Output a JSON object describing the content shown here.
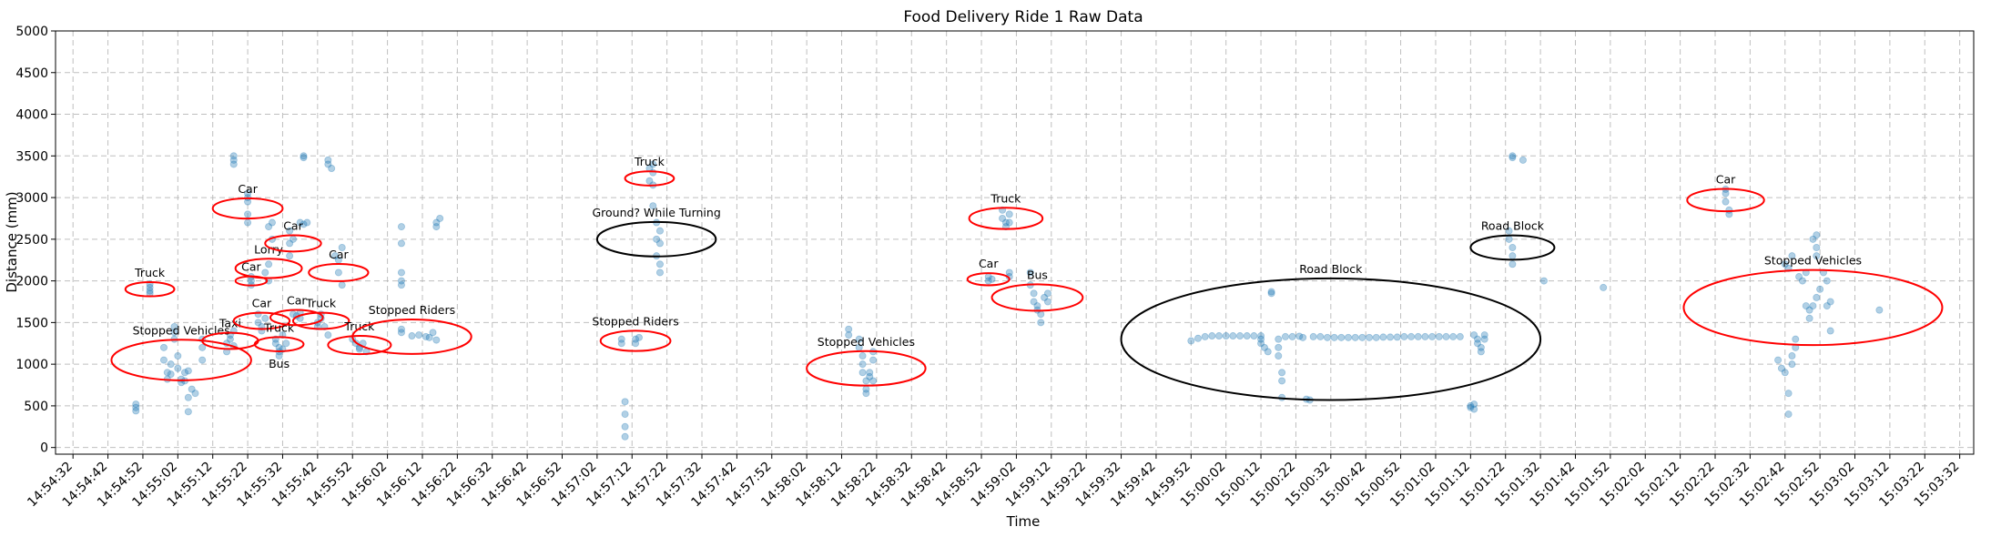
{
  "chart_data": {
    "type": "scatter",
    "title": "Food Delivery Ride 1 Raw Data",
    "xlabel": "Time",
    "ylabel": "Distance (mm)",
    "xlim": [
      "14:54:27",
      "15:03:36"
    ],
    "ylim": [
      -80,
      5000
    ],
    "y_ticks": [
      0,
      500,
      1000,
      1500,
      2000,
      2500,
      3000,
      3500,
      4000,
      4500,
      5000
    ],
    "x_tick_start": "14:54:32",
    "x_tick_step_seconds": 10,
    "x_tick_labels": [
      "14:54:32",
      "14:54:42",
      "14:54:52",
      "14:55:02",
      "14:55:12",
      "14:55:22",
      "14:55:32",
      "14:55:42",
      "14:55:52",
      "14:56:02",
      "14:56:12",
      "14:56:22",
      "14:56:32",
      "14:56:42",
      "14:56:52",
      "14:57:02",
      "14:57:12",
      "14:57:22",
      "14:57:32",
      "14:57:42",
      "14:57:52",
      "14:58:02",
      "14:58:12",
      "14:58:22",
      "14:58:32",
      "14:58:42",
      "14:58:52",
      "14:59:02",
      "14:59:12",
      "14:59:22",
      "14:59:32",
      "14:59:42",
      "14:59:52",
      "15:00:02",
      "15:00:12",
      "15:00:22",
      "15:00:32",
      "15:00:42",
      "15:00:52",
      "15:01:02",
      "15:01:12",
      "15:01:22",
      "15:01:32",
      "15:01:42",
      "15:01:52",
      "15:02:02",
      "15:02:12",
      "15:02:22",
      "15:02:32",
      "15:02:42",
      "15:02:52",
      "15:03:02",
      "15:03:12",
      "15:03:22",
      "15:03:32"
    ],
    "grid": true,
    "marker_color": "#1f77b4",
    "points": [
      [
        "14:54:50",
        520
      ],
      [
        "14:54:50",
        480
      ],
      [
        "14:54:50",
        440
      ],
      [
        "14:54:54",
        1960
      ],
      [
        "14:54:54",
        1920
      ],
      [
        "14:54:54",
        1880
      ],
      [
        "14:54:54",
        1850
      ],
      [
        "14:54:58",
        1200
      ],
      [
        "14:54:58",
        1050
      ],
      [
        "14:54:59",
        900
      ],
      [
        "14:54:59",
        820
      ],
      [
        "14:55:00",
        880
      ],
      [
        "14:55:00",
        1000
      ],
      [
        "14:55:01",
        1300
      ],
      [
        "14:55:01",
        1380
      ],
      [
        "14:55:01",
        1450
      ],
      [
        "14:55:02",
        1100
      ],
      [
        "14:55:02",
        950
      ],
      [
        "14:55:03",
        820
      ],
      [
        "14:55:03",
        780
      ],
      [
        "14:55:04",
        900
      ],
      [
        "14:55:04",
        800
      ],
      [
        "14:55:05",
        920
      ],
      [
        "14:55:05",
        600
      ],
      [
        "14:55:05",
        430
      ],
      [
        "14:55:06",
        700
      ],
      [
        "14:55:07",
        650
      ],
      [
        "14:55:09",
        1050
      ],
      [
        "14:55:09",
        1300
      ],
      [
        "14:55:09",
        1200
      ],
      [
        "14:55:16",
        1250
      ],
      [
        "14:55:16",
        1150
      ],
      [
        "14:55:17",
        1300
      ],
      [
        "14:55:17",
        1350
      ],
      [
        "14:55:18",
        1400
      ],
      [
        "14:55:18",
        1220
      ],
      [
        "14:55:18",
        3400
      ],
      [
        "14:55:18",
        3450
      ],
      [
        "14:55:18",
        3500
      ],
      [
        "14:55:22",
        3000
      ],
      [
        "14:55:22",
        2950
      ],
      [
        "14:55:22",
        2800
      ],
      [
        "14:55:22",
        2700
      ],
      [
        "14:55:22",
        3050
      ],
      [
        "14:55:23",
        2050
      ],
      [
        "14:55:23",
        2000
      ],
      [
        "14:55:23",
        1950
      ],
      [
        "14:55:25",
        1600
      ],
      [
        "14:55:25",
        1500
      ],
      [
        "14:55:26",
        1450
      ],
      [
        "14:55:26",
        1400
      ],
      [
        "14:55:27",
        1550
      ],
      [
        "14:55:27",
        2100
      ],
      [
        "14:55:28",
        2000
      ],
      [
        "14:55:28",
        2200
      ],
      [
        "14:55:28",
        2650
      ],
      [
        "14:55:29",
        2700
      ],
      [
        "14:55:29",
        2500
      ],
      [
        "14:55:30",
        1300
      ],
      [
        "14:55:30",
        1250
      ],
      [
        "14:55:31",
        1200
      ],
      [
        "14:55:31",
        1150
      ],
      [
        "14:55:32",
        1180
      ],
      [
        "14:55:33",
        1250
      ],
      [
        "14:55:31",
        1100
      ],
      [
        "14:55:32",
        1350
      ],
      [
        "14:55:34",
        2300
      ],
      [
        "14:55:34",
        2450
      ],
      [
        "14:55:34",
        2600
      ],
      [
        "14:55:35",
        2500
      ],
      [
        "14:55:35",
        1600
      ],
      [
        "14:55:36",
        1580
      ],
      [
        "14:55:37",
        1620
      ],
      [
        "14:55:37",
        1550
      ],
      [
        "14:55:38",
        3500
      ],
      [
        "14:55:38",
        3480
      ],
      [
        "14:55:37",
        2700
      ],
      [
        "14:55:38",
        2680
      ],
      [
        "14:55:39",
        2700
      ],
      [
        "14:55:42",
        1500
      ],
      [
        "14:55:42",
        1450
      ],
      [
        "14:55:43",
        1550
      ],
      [
        "14:55:43",
        1600
      ],
      [
        "14:55:44",
        1450
      ],
      [
        "14:55:45",
        1350
      ],
      [
        "14:55:45",
        3450
      ],
      [
        "14:55:45",
        3400
      ],
      [
        "14:55:46",
        3350
      ],
      [
        "14:55:47",
        2300
      ],
      [
        "14:55:48",
        2250
      ],
      [
        "14:55:49",
        2400
      ],
      [
        "14:55:48",
        2100
      ],
      [
        "14:55:49",
        1950
      ],
      [
        "14:55:52",
        1300
      ],
      [
        "14:55:53",
        1250
      ],
      [
        "14:55:54",
        1200
      ],
      [
        "14:55:54",
        1180
      ],
      [
        "14:55:55",
        1250
      ],
      [
        "14:55:56",
        1150
      ],
      [
        "14:56:06",
        2650
      ],
      [
        "14:56:06",
        2450
      ],
      [
        "14:56:06",
        2100
      ],
      [
        "14:56:06",
        2000
      ],
      [
        "14:56:06",
        1950
      ],
      [
        "14:56:06",
        1420
      ],
      [
        "14:56:06",
        1380
      ],
      [
        "14:56:09",
        1340
      ],
      [
        "14:56:11",
        1350
      ],
      [
        "14:56:13",
        1330
      ],
      [
        "14:56:14",
        1320
      ],
      [
        "14:56:15",
        1380
      ],
      [
        "14:56:16",
        1290
      ],
      [
        "14:56:16",
        2650
      ],
      [
        "14:56:16",
        2700
      ],
      [
        "14:56:17",
        2750
      ],
      [
        "14:57:09",
        1300
      ],
      [
        "14:57:09",
        1250
      ],
      [
        "14:57:10",
        550
      ],
      [
        "14:57:10",
        400
      ],
      [
        "14:57:10",
        250
      ],
      [
        "14:57:10",
        130
      ],
      [
        "14:57:13",
        1300
      ],
      [
        "14:57:13",
        1250
      ],
      [
        "14:57:14",
        1320
      ],
      [
        "14:57:17",
        3350
      ],
      [
        "14:57:17",
        3200
      ],
      [
        "14:57:18",
        3400
      ],
      [
        "14:57:18",
        3300
      ],
      [
        "14:57:18",
        3150
      ],
      [
        "14:57:18",
        2900
      ],
      [
        "14:57:19",
        2700
      ],
      [
        "14:57:19",
        2500
      ],
      [
        "14:57:19",
        2300
      ],
      [
        "14:57:20",
        2600
      ],
      [
        "14:57:20",
        2200
      ],
      [
        "14:57:20",
        2100
      ],
      [
        "14:57:20",
        2450
      ],
      [
        "14:58:14",
        1420
      ],
      [
        "14:58:14",
        1350
      ],
      [
        "14:58:17",
        1300
      ],
      [
        "14:58:17",
        1200
      ],
      [
        "14:58:18",
        1100
      ],
      [
        "14:58:18",
        1000
      ],
      [
        "14:58:18",
        900
      ],
      [
        "14:58:19",
        800
      ],
      [
        "14:58:19",
        700
      ],
      [
        "14:58:19",
        650
      ],
      [
        "14:58:20",
        900
      ],
      [
        "14:58:20",
        850
      ],
      [
        "14:58:21",
        800
      ],
      [
        "14:58:21",
        1150
      ],
      [
        "14:58:21",
        1050
      ],
      [
        "14:58:54",
        2050
      ],
      [
        "14:58:54",
        2000
      ],
      [
        "14:58:55",
        2020
      ],
      [
        "14:58:58",
        2850
      ],
      [
        "14:58:58",
        2750
      ],
      [
        "14:58:59",
        2700
      ],
      [
        "14:58:59",
        2650
      ],
      [
        "14:59:00",
        2800
      ],
      [
        "14:59:00",
        2700
      ],
      [
        "14:59:00",
        2100
      ],
      [
        "14:59:00",
        2050
      ],
      [
        "14:59:06",
        2100
      ],
      [
        "14:59:06",
        1950
      ],
      [
        "14:59:07",
        1850
      ],
      [
        "14:59:07",
        1750
      ],
      [
        "14:59:08",
        1700
      ],
      [
        "14:59:08",
        1650
      ],
      [
        "14:59:09",
        1600
      ],
      [
        "14:59:09",
        1500
      ],
      [
        "14:59:10",
        1800
      ],
      [
        "14:59:11",
        1850
      ],
      [
        "14:59:11",
        1750
      ],
      [
        "14:59:52",
        1280
      ],
      [
        "14:59:54",
        1310
      ],
      [
        "14:59:56",
        1330
      ],
      [
        "14:59:58",
        1340
      ],
      [
        "15:00:00",
        1340
      ],
      [
        "15:00:02",
        1340
      ],
      [
        "15:00:04",
        1340
      ],
      [
        "15:00:06",
        1340
      ],
      [
        "15:00:08",
        1340
      ],
      [
        "15:00:10",
        1340
      ],
      [
        "15:00:12",
        1340
      ],
      [
        "15:00:12",
        1300
      ],
      [
        "15:00:12",
        1250
      ],
      [
        "15:00:13",
        1200
      ],
      [
        "15:00:14",
        1150
      ],
      [
        "15:00:15",
        1850
      ],
      [
        "15:00:15",
        1870
      ],
      [
        "15:00:17",
        1300
      ],
      [
        "15:00:17",
        1200
      ],
      [
        "15:00:17",
        1100
      ],
      [
        "15:00:18",
        900
      ],
      [
        "15:00:18",
        800
      ],
      [
        "15:00:18",
        600
      ],
      [
        "15:00:19",
        1330
      ],
      [
        "15:00:21",
        1330
      ],
      [
        "15:00:23",
        1335
      ],
      [
        "15:00:24",
        1320
      ],
      [
        "15:00:25",
        580
      ],
      [
        "15:00:26",
        570
      ],
      [
        "15:00:27",
        1330
      ],
      [
        "15:00:29",
        1330
      ],
      [
        "15:00:31",
        1320
      ],
      [
        "15:00:33",
        1320
      ],
      [
        "15:00:35",
        1320
      ],
      [
        "15:00:37",
        1320
      ],
      [
        "15:00:39",
        1320
      ],
      [
        "15:00:41",
        1320
      ],
      [
        "15:00:43",
        1320
      ],
      [
        "15:00:45",
        1320
      ],
      [
        "15:00:47",
        1325
      ],
      [
        "15:00:49",
        1325
      ],
      [
        "15:00:51",
        1325
      ],
      [
        "15:00:53",
        1330
      ],
      [
        "15:00:55",
        1330
      ],
      [
        "15:00:57",
        1330
      ],
      [
        "15:00:59",
        1330
      ],
      [
        "15:01:01",
        1330
      ],
      [
        "15:01:03",
        1330
      ],
      [
        "15:01:05",
        1330
      ],
      [
        "15:01:07",
        1330
      ],
      [
        "15:01:09",
        1330
      ],
      [
        "15:01:12",
        500
      ],
      [
        "15:01:12",
        480
      ],
      [
        "15:01:13",
        460
      ],
      [
        "15:01:13",
        520
      ],
      [
        "15:01:13",
        1350
      ],
      [
        "15:01:14",
        1300
      ],
      [
        "15:01:14",
        1250
      ],
      [
        "15:01:15",
        1200
      ],
      [
        "15:01:15",
        1150
      ],
      [
        "15:01:16",
        1350
      ],
      [
        "15:01:16",
        1300
      ],
      [
        "15:01:23",
        2600
      ],
      [
        "15:01:23",
        2500
      ],
      [
        "15:01:24",
        2400
      ],
      [
        "15:01:24",
        2300
      ],
      [
        "15:01:24",
        2200
      ],
      [
        "15:01:24",
        3480
      ],
      [
        "15:01:24",
        3500
      ],
      [
        "15:01:27",
        3450
      ],
      [
        "15:01:33",
        2000
      ],
      [
        "15:01:50",
        1920
      ],
      [
        "15:02:25",
        3100
      ],
      [
        "15:02:25",
        3050
      ],
      [
        "15:02:25",
        2950
      ],
      [
        "15:02:26",
        2850
      ],
      [
        "15:02:26",
        2800
      ],
      [
        "15:02:40",
        1050
      ],
      [
        "15:02:41",
        950
      ],
      [
        "15:02:42",
        900
      ],
      [
        "15:02:43",
        650
      ],
      [
        "15:02:43",
        400
      ],
      [
        "15:02:44",
        1000
      ],
      [
        "15:02:44",
        1100
      ],
      [
        "15:02:45",
        1200
      ],
      [
        "15:02:45",
        1300
      ],
      [
        "15:02:42",
        2200
      ],
      [
        "15:02:43",
        2150
      ],
      [
        "15:02:44",
        2300
      ],
      [
        "15:02:46",
        2050
      ],
      [
        "15:02:47",
        2000
      ],
      [
        "15:02:48",
        2100
      ],
      [
        "15:02:48",
        1700
      ],
      [
        "15:02:49",
        1650
      ],
      [
        "15:02:49",
        1550
      ],
      [
        "15:02:50",
        1700
      ],
      [
        "15:02:51",
        1800
      ],
      [
        "15:02:52",
        1900
      ],
      [
        "15:02:50",
        2500
      ],
      [
        "15:02:51",
        2550
      ],
      [
        "15:02:51",
        2400
      ],
      [
        "15:02:51",
        2300
      ],
      [
        "15:02:53",
        2100
      ],
      [
        "15:02:54",
        2000
      ],
      [
        "15:02:54",
        1700
      ],
      [
        "15:02:55",
        1750
      ],
      [
        "15:02:55",
        1400
      ],
      [
        "15:03:09",
        1650
      ]
    ],
    "annotations": [
      {
        "text": "Truck",
        "x": "14:54:54",
        "y": 1900,
        "color": "#ff0000",
        "size": 7
      },
      {
        "text": "Stopped Vehicles",
        "x": "14:55:03",
        "y": 1050,
        "color": "#ff0000",
        "size": 20
      },
      {
        "text": "Taxi",
        "x": "14:55:17",
        "y": 1280,
        "color": "#ff0000",
        "size": 8
      },
      {
        "text": "Car",
        "x": "14:55:22",
        "y": 2870,
        "color": "#ff0000",
        "size": 10
      },
      {
        "text": "Car",
        "x": "14:55:23",
        "y": 2000,
        "color": "#ff0000",
        "size": 4.5
      },
      {
        "text": "Lorry",
        "x": "14:55:28",
        "y": 2150,
        "color": "#ff0000",
        "size": 9.5
      },
      {
        "text": "Car",
        "x": "14:55:26",
        "y": 1520,
        "color": "#ff0000",
        "size": 8
      },
      {
        "text": "Truck",
        "x": "14:55:31",
        "y": 1240,
        "color": "#ff0000",
        "size": 7
      },
      {
        "text": "Bus",
        "x": "14:55:31",
        "y": 1240,
        "color": "#000000",
        "size": 0
      },
      {
        "text": "Car",
        "x": "14:55:35",
        "y": 2450,
        "color": "#ff0000",
        "size": 8
      },
      {
        "text": "Car",
        "x": "14:55:36",
        "y": 1560,
        "color": "#ff0000",
        "size": 7.5
      },
      {
        "text": "Truck",
        "x": "14:55:43",
        "y": 1520,
        "color": "#ff0000",
        "size": 8
      },
      {
        "text": "Car",
        "x": "14:55:48",
        "y": 2100,
        "color": "#ff0000",
        "size": 8.5
      },
      {
        "text": "Truck",
        "x": "14:55:54",
        "y": 1230,
        "color": "#ff0000",
        "size": 9
      },
      {
        "text": "Stopped Riders",
        "x": "14:56:09",
        "y": 1330,
        "color": "#ff0000",
        "size": 17
      },
      {
        "text": "Stopped Riders",
        "x": "14:57:13",
        "y": 1280,
        "color": "#ff0000",
        "size": 10
      },
      {
        "text": "Truck",
        "x": "14:57:17",
        "y": 3230,
        "color": "#ff0000",
        "size": 7
      },
      {
        "text": "Ground? While Turning",
        "x": "14:57:19",
        "y": 2500,
        "color": "#000000",
        "size": 17
      },
      {
        "text": "Stopped Vehicles",
        "x": "14:58:19",
        "y": 950,
        "color": "#ff0000",
        "size": 17
      },
      {
        "text": "Car",
        "x": "14:58:54",
        "y": 2020,
        "color": "#ff0000",
        "size": 6
      },
      {
        "text": "Truck",
        "x": "14:58:59",
        "y": 2750,
        "color": "#ff0000",
        "size": 10.5
      },
      {
        "text": "Bus",
        "x": "14:59:08",
        "y": 1800,
        "color": "#ff0000",
        "size": 13
      },
      {
        "text": "Road Block",
        "x": "15:00:32",
        "y": 1300,
        "color": "#000000",
        "size": 60
      },
      {
        "text": "Road Block",
        "x": "15:01:24",
        "y": 2400,
        "color": "#000000",
        "size": 12
      },
      {
        "text": "Car",
        "x": "15:02:25",
        "y": 2970,
        "color": "#ff0000",
        "size": 11
      },
      {
        "text": "Stopped Vehicles",
        "x": "15:02:50",
        "y": 1680,
        "color": "#ff0000",
        "size": 37
      }
    ]
  }
}
